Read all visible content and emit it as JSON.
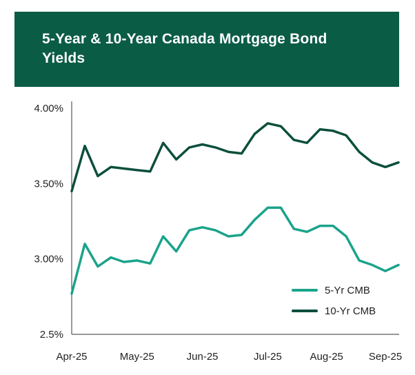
{
  "chart_data": {
    "type": "line",
    "title": "5-Year & 10-Year Canada Mortgage Bond Yields",
    "xlabel": "",
    "ylabel": "",
    "ylim": [
      2.5,
      4.0
    ],
    "y_ticks": [
      {
        "value": 4.0,
        "label": "4.00%"
      },
      {
        "value": 3.5,
        "label": "3.50%"
      },
      {
        "value": 3.0,
        "label": "3.00%"
      },
      {
        "value": 2.5,
        "label": "2.5%"
      }
    ],
    "x_ticks": [
      {
        "index": 0,
        "label": "Apr-25"
      },
      {
        "index": 5,
        "label": "May-25"
      },
      {
        "index": 10,
        "label": "Jun-25"
      },
      {
        "index": 15,
        "label": "Jul-25"
      },
      {
        "index": 19.5,
        "label": "Aug-25"
      },
      {
        "index": 24,
        "label": "Sep-25"
      }
    ],
    "legend_position": "bottom-right",
    "series": [
      {
        "name": "5-Yr CMB",
        "color": "#1aa38a",
        "values": [
          2.77,
          3.1,
          2.95,
          3.01,
          2.98,
          2.99,
          2.97,
          3.15,
          3.05,
          3.19,
          3.21,
          3.19,
          3.15,
          3.16,
          3.26,
          3.34,
          3.34,
          3.2,
          3.18,
          3.22,
          3.22,
          3.15,
          2.99,
          2.96,
          2.92,
          2.96
        ]
      },
      {
        "name": "10-Yr CMB",
        "color": "#0b4f3c",
        "values": [
          3.45,
          3.75,
          3.55,
          3.61,
          3.6,
          3.59,
          3.58,
          3.77,
          3.66,
          3.74,
          3.76,
          3.74,
          3.71,
          3.7,
          3.83,
          3.9,
          3.88,
          3.79,
          3.77,
          3.86,
          3.85,
          3.82,
          3.71,
          3.64,
          3.61,
          3.64
        ]
      }
    ]
  }
}
